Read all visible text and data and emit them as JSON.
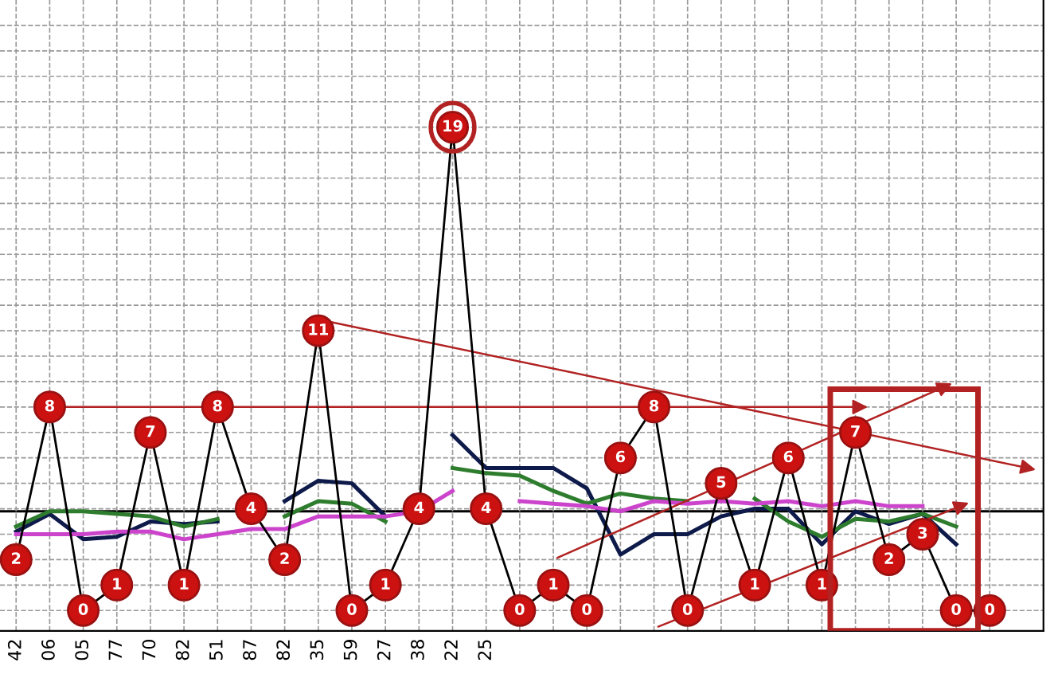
{
  "chart_data": {
    "type": "line",
    "categories": [
      "42",
      "06",
      "05",
      "77",
      "70",
      "82",
      "51",
      "87",
      "82",
      "35",
      "59",
      "27",
      "38",
      "22",
      "25",
      null,
      null,
      null,
      null,
      null,
      null,
      null,
      null,
      null,
      null,
      null,
      null,
      null,
      null,
      null
    ],
    "series": [
      {
        "color": "#000000",
        "marker": "circle",
        "data_labels": true,
        "values": [
          2,
          8,
          0,
          1,
          7,
          1,
          8,
          4,
          2,
          11,
          0,
          1,
          4,
          19,
          4,
          0,
          1,
          0,
          6,
          8,
          0,
          5,
          1,
          6,
          1,
          7,
          2,
          3,
          0,
          0
        ]
      },
      {
        "color": "#0d1a4a",
        "marker": "none",
        "values": [
          3.1,
          3.8,
          2.8,
          2.9,
          3.5,
          3.4,
          3.5,
          null,
          4.3,
          5.1,
          5.0,
          3.7,
          null,
          6.9,
          5.6,
          5.6,
          5.6,
          4.8,
          2.2,
          3.0,
          3.0,
          3.7,
          4.0,
          4.0,
          2.6,
          3.9,
          3.4,
          3.8,
          2.6,
          null
        ]
      },
      {
        "color": "#2e7d2e",
        "marker": "none",
        "values": [
          3.3,
          3.9,
          3.9,
          3.8,
          3.7,
          3.3,
          3.6,
          null,
          3.7,
          4.3,
          4.2,
          3.5,
          null,
          5.6,
          5.4,
          5.3,
          4.7,
          4.2,
          4.6,
          4.4,
          4.3,
          null,
          4.4,
          3.5,
          2.9,
          3.6,
          3.5,
          3.8,
          3.3,
          null
        ]
      },
      {
        "color": "#cc44cc",
        "marker": "none",
        "values": [
          3.0,
          3.0,
          3.0,
          3.1,
          3.1,
          2.8,
          3.0,
          3.2,
          3.2,
          3.7,
          3.7,
          3.7,
          3.9,
          4.7,
          null,
          4.3,
          4.2,
          4.1,
          3.9,
          4.3,
          4.2,
          4.3,
          4.2,
          4.3,
          4.1,
          4.3,
          4.1,
          4.1,
          null,
          null
        ]
      }
    ],
    "ref_lines": [
      {
        "axis": "y",
        "value": 3.9,
        "color": "#000000"
      }
    ],
    "ylim": [
      -0.8,
      24
    ],
    "yticks": [
      {
        "value": 0,
        "label": null
      },
      {
        "value": 1,
        "label": null
      },
      {
        "value": 2,
        "label": null
      },
      {
        "value": 3,
        "label": null
      },
      {
        "value": 4,
        "label": null
      },
      {
        "value": 5,
        "label": null
      },
      {
        "value": 6,
        "label": null
      },
      {
        "value": 7,
        "label": null
      },
      {
        "value": 8,
        "label": null
      },
      {
        "value": 9,
        "label": null
      },
      {
        "value": 10,
        "label": null
      },
      {
        "value": 11,
        "label": null
      },
      {
        "value": 12,
        "label": null
      },
      {
        "value": 13,
        "label": null
      },
      {
        "value": 14,
        "label": null
      },
      {
        "value": 15,
        "label": null
      },
      {
        "value": 16,
        "label": null
      },
      {
        "value": 17,
        "label": null
      },
      {
        "value": 18,
        "label": null
      },
      {
        "value": 19,
        "label": null
      },
      {
        "value": 20,
        "label": null
      },
      {
        "value": 21,
        "label": null
      },
      {
        "value": 22,
        "label": null
      },
      {
        "value": 23,
        "label": null
      }
    ],
    "grid": true,
    "tick_labels": "x",
    "legend": false
  }
}
